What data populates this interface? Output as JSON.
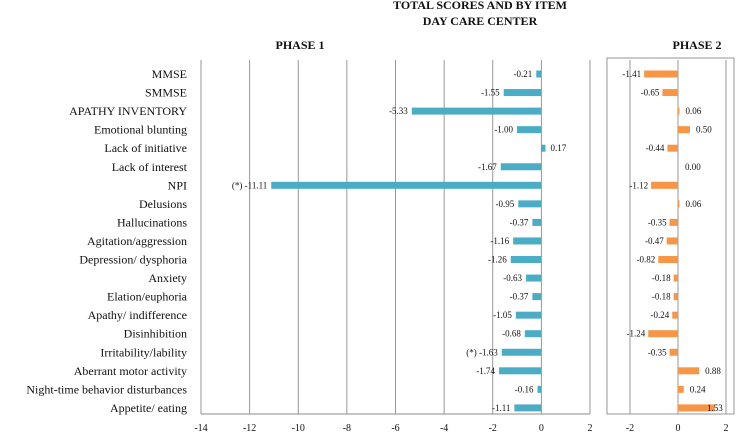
{
  "chart_data": [
    {
      "type": "bar",
      "orientation": "horizontal",
      "title_lines": [
        "TOTAL SCORES AND BY ITEM",
        "DAY CARE CENTER"
      ],
      "subtitle": "PHASE 1",
      "color": "#4bacc6",
      "categories": [
        "MMSE",
        "SMMSE",
        "APATHY INVENTORY",
        "Emotional blunting",
        "Lack of initiative",
        "Lack of interest",
        "NPI",
        "Delusions",
        "Hallucinations",
        "Agitation/aggression",
        "Depression/ dysphoria",
        "Anxiety",
        "Elation/euphoria",
        "Apathy/ indifference",
        "Disinhibition",
        "Irritability/lability",
        "Aberrant motor activity",
        "Night-time behavior disturbances",
        "Appetite/ eating"
      ],
      "values": [
        -0.21,
        -1.55,
        -5.33,
        -1.0,
        0.17,
        -1.67,
        -11.11,
        -0.95,
        -0.37,
        -1.16,
        -1.26,
        -0.63,
        -0.37,
        -1.05,
        -0.68,
        -1.63,
        -1.74,
        -0.16,
        -1.11
      ],
      "data_labels": [
        "-0.21",
        "-1.55",
        "-5.33",
        "-1.00",
        "0.17",
        "-1.67",
        "(*) -11.11",
        "-0.95",
        "-0.37",
        "-1.16",
        "-1.26",
        "-0.63",
        "-0.37",
        "-1.05",
        "-0.68",
        "(*) -1.63",
        "-1.74",
        "-0.16",
        "-1.11"
      ],
      "xlim": [
        -14,
        2
      ],
      "xticks": [
        "-14",
        "-12",
        "-10",
        "-8",
        "-6",
        "-4",
        "-2",
        "0",
        "2"
      ],
      "grid": true
    },
    {
      "type": "bar",
      "orientation": "horizontal",
      "subtitle": "PHASE 2",
      "color": "#f79646",
      "categories": [
        "MMSE",
        "SMMSE",
        "APATHY INVENTORY",
        "Emotional blunting",
        "Lack of initiative",
        "Lack of interest",
        "NPI",
        "Delusions",
        "Hallucinations",
        "Agitation/aggression",
        "Depression/ dysphoria",
        "Anxiety",
        "Elation/euphoria",
        "Apathy/ indifference",
        "Disinhibition",
        "Irritability/lability",
        "Aberrant motor activity",
        "Night-time behavior disturbances",
        "Appetite/ eating"
      ],
      "values": [
        -1.41,
        -0.65,
        0.06,
        0.5,
        -0.44,
        0.0,
        -1.12,
        0.06,
        -0.35,
        -0.47,
        -0.82,
        -0.18,
        -0.18,
        -0.24,
        -1.24,
        -0.35,
        0.88,
        0.24,
        1.53
      ],
      "data_labels": [
        "-1.41",
        "-0.65",
        "0.06",
        "0.50",
        "-0.44",
        "0.00",
        "-1.12",
        "0.06",
        "-0.35",
        "-0.47",
        "-0.82",
        "-0.18",
        "-0.18",
        "-0.24",
        "-1.24",
        "-0.35",
        "0.88",
        "0.24",
        "1.53"
      ],
      "xlim": [
        -2,
        2
      ],
      "xticks": [
        "-2",
        "0",
        "2"
      ],
      "grid": true
    }
  ]
}
